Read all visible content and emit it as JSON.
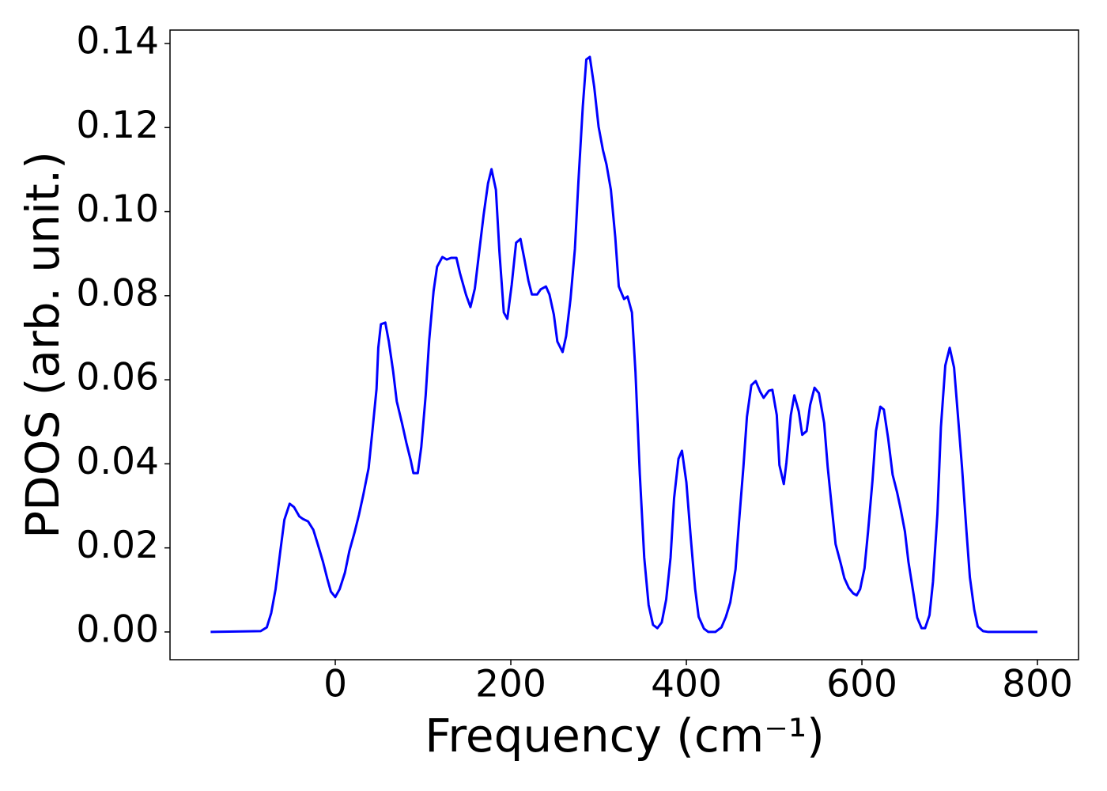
{
  "chart_data": {
    "type": "line",
    "xlabel": "Frequency (cm⁻¹)",
    "ylabel": "PDOS (arb. unit.)",
    "series": [
      {
        "color": "#0000ff",
        "x": [
          -142,
          -85,
          -78,
          -73,
          -68,
          -63,
          -58,
          -52,
          -47,
          -41,
          -37,
          -31,
          -25,
          -20,
          -14,
          -9,
          -5,
          0,
          5,
          11,
          16,
          22,
          27,
          32,
          38,
          42,
          47,
          49,
          52,
          57,
          61,
          66,
          70,
          76,
          81,
          86,
          89,
          94,
          98,
          103,
          107,
          112,
          116,
          122,
          127,
          132,
          138,
          142,
          149,
          154,
          159,
          164,
          169,
          174,
          178,
          183,
          187,
          192,
          196,
          201,
          206,
          211,
          215,
          220,
          224,
          230,
          234,
          240,
          244,
          249,
          253,
          259,
          263,
          268,
          273,
          277,
          282,
          286,
          290,
          295,
          300,
          305,
          309,
          314,
          319,
          323,
          329,
          333,
          338,
          342,
          347,
          352,
          357,
          362,
          367,
          372,
          377,
          382,
          386,
          391,
          395,
          400,
          405,
          410,
          414,
          420,
          425,
          433,
          440,
          445,
          450,
          456,
          460,
          465,
          469,
          474,
          479,
          484,
          488,
          494,
          498,
          503,
          506,
          511,
          514,
          519,
          523,
          528,
          532,
          537,
          541,
          546,
          551,
          557,
          561,
          566,
          570,
          576,
          580,
          585,
          590,
          594,
          598,
          603,
          607,
          612,
          616,
          621,
          625,
          630,
          635,
          640,
          644,
          649,
          653,
          659,
          663,
          668,
          672,
          677,
          681,
          686,
          690,
          695,
          700,
          705,
          709,
          714,
          719,
          723,
          728,
          732,
          738,
          744,
          800
        ],
        "values": [
          0,
          0.0002,
          0.0011,
          0.0045,
          0.0102,
          0.0186,
          0.0267,
          0.0305,
          0.0297,
          0.0275,
          0.0269,
          0.0263,
          0.0243,
          0.0209,
          0.0167,
          0.0126,
          0.0096,
          0.0083,
          0.0102,
          0.0141,
          0.0192,
          0.0237,
          0.0279,
          0.0327,
          0.039,
          0.0472,
          0.0578,
          0.0676,
          0.0732,
          0.0736,
          0.0691,
          0.0619,
          0.0549,
          0.0497,
          0.045,
          0.0408,
          0.0378,
          0.0378,
          0.044,
          0.0563,
          0.0694,
          0.0811,
          0.0869,
          0.0892,
          0.0886,
          0.089,
          0.089,
          0.0854,
          0.0802,
          0.0773,
          0.0817,
          0.0905,
          0.0992,
          0.1067,
          0.1101,
          0.1052,
          0.0905,
          0.076,
          0.0745,
          0.0826,
          0.0926,
          0.0935,
          0.0892,
          0.0836,
          0.0803,
          0.0803,
          0.0815,
          0.0822,
          0.0803,
          0.0755,
          0.0691,
          0.0666,
          0.0704,
          0.0792,
          0.0911,
          0.1071,
          0.125,
          0.1362,
          0.1368,
          0.1297,
          0.1202,
          0.1146,
          0.1112,
          0.1052,
          0.0939,
          0.0822,
          0.0792,
          0.0798,
          0.076,
          0.0619,
          0.0374,
          0.0177,
          0.0064,
          0.0017,
          0.0009,
          0.0023,
          0.0077,
          0.0177,
          0.0318,
          0.0412,
          0.0431,
          0.0356,
          0.0224,
          0.0102,
          0.0036,
          0.0008,
          0,
          0,
          0.0011,
          0.0036,
          0.007,
          0.0149,
          0.0262,
          0.0393,
          0.0512,
          0.0587,
          0.0597,
          0.0572,
          0.0557,
          0.0574,
          0.0576,
          0.0516,
          0.0397,
          0.0352,
          0.0403,
          0.0516,
          0.0563,
          0.0525,
          0.0469,
          0.0478,
          0.054,
          0.0581,
          0.0568,
          0.0497,
          0.0393,
          0.029,
          0.0209,
          0.0162,
          0.0128,
          0.0105,
          0.0092,
          0.0087,
          0.0102,
          0.0152,
          0.0239,
          0.0359,
          0.0478,
          0.0536,
          0.0529,
          0.0459,
          0.0374,
          0.0333,
          0.0294,
          0.0239,
          0.0167,
          0.0088,
          0.0034,
          0.0009,
          0.0009,
          0.004,
          0.012,
          0.028,
          0.0487,
          0.0634,
          0.0676,
          0.0629,
          0.0525,
          0.0393,
          0.0243,
          0.013,
          0.0053,
          0.0013,
          0.0002,
          0,
          0
        ]
      }
    ],
    "xlim": [
      -188.3,
      846.8
    ],
    "ylim": [
      -0.0066,
      0.1432
    ],
    "xticks": [
      0,
      200,
      400,
      600,
      800
    ],
    "yticks": [
      {
        "value": 0,
        "label": "0.00"
      },
      0.02,
      0.04,
      0.06,
      0.08,
      {
        "value": 0.1,
        "label": "0.10"
      },
      0.12,
      0.14
    ],
    "grid": false
  }
}
